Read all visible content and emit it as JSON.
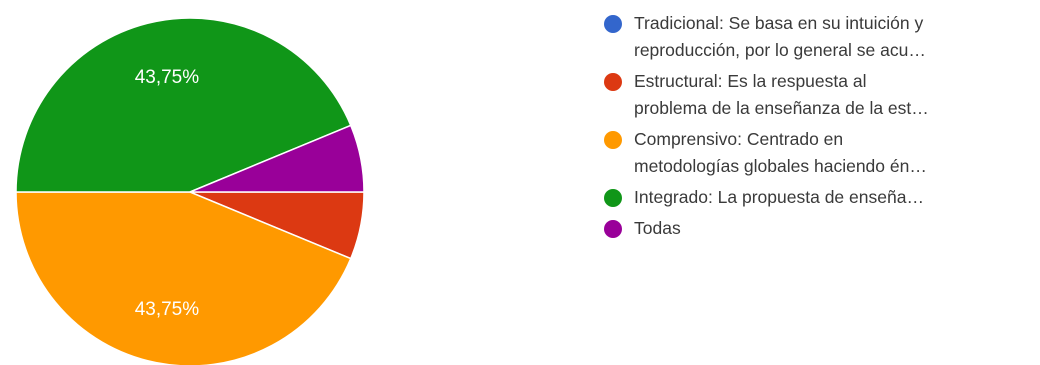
{
  "chart_data": {
    "type": "pie",
    "title": "",
    "series": [
      {
        "name": "Tradicional: Se basa en su intuición y reproducción, por lo general se acu…",
        "lines": [
          "Tradicional: Se basa en su intuición y",
          "reproducción, por lo general se acu…"
        ],
        "value": 0,
        "color": "#3366cc"
      },
      {
        "name": "Estructural: Es la respuesta al problema de la enseñanza de la est…",
        "lines": [
          "Estructural: Es la respuesta al",
          "problema de la enseñanza de la est…"
        ],
        "value": 6.25,
        "color": "#dc3912"
      },
      {
        "name": "Comprensivo: Centrado en metodologías globales haciendo én…",
        "lines": [
          "Comprensivo: Centrado en",
          "metodologías globales haciendo én…"
        ],
        "value": 43.75,
        "color": "#ff9900"
      },
      {
        "name": "Integrado: La propuesta de enseña…",
        "lines": [
          "Integrado: La propuesta de enseña…"
        ],
        "value": 43.75,
        "color": "#109618"
      },
      {
        "name": "Todas",
        "lines": [
          "Todas"
        ],
        "value": 6.25,
        "color": "#990099"
      }
    ],
    "data_labels": [
      {
        "series_index": 2,
        "text": "43,75%"
      },
      {
        "series_index": 3,
        "text": "43,75%"
      }
    ],
    "legend_position": "right"
  }
}
